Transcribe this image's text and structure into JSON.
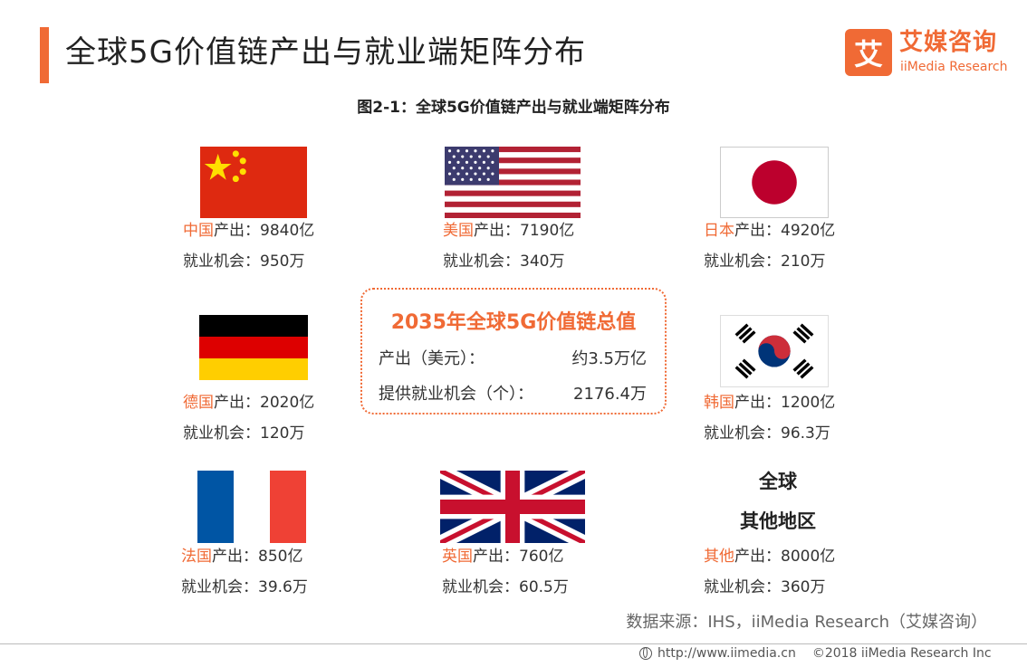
{
  "header": {
    "title": "全球5G价值链产出与就业端矩阵分布",
    "logo_icon": "艾",
    "logo_cn": "艾媒咨询",
    "logo_en": "iiMedia Research"
  },
  "chart_title": "图2-1：全球5G价值链产出与就业端矩阵分布",
  "countries": [
    {
      "name": "中国",
      "output_label": "产出：9840亿",
      "jobs_label": "就业机会：950万",
      "flag": "china-flag-icon"
    },
    {
      "name": "美国",
      "output_label": "产出：7190亿",
      "jobs_label": "就业机会：340万",
      "flag": "usa-flag-icon"
    },
    {
      "name": "日本",
      "output_label": "产出：4920亿",
      "jobs_label": "就业机会：210万",
      "flag": "japan-flag-icon"
    },
    {
      "name": "德国",
      "output_label": "产出：2020亿",
      "jobs_label": "就业机会：120万",
      "flag": "germany-flag-icon"
    },
    {
      "name": "韩国",
      "output_label": "产出：1200亿",
      "jobs_label": "就业机会：96.3万",
      "flag": "korea-flag-icon"
    },
    {
      "name": "法国",
      "output_label": "产出：850亿",
      "jobs_label": "就业机会：39.6万",
      "flag": "france-flag-icon"
    },
    {
      "name": "英国",
      "output_label": "产出：760亿",
      "jobs_label": "就业机会：60.5万",
      "flag": "uk-flag-icon"
    },
    {
      "name": "其他",
      "output_label": "产出：8000亿",
      "jobs_label": "就业机会：360万",
      "flag": ""
    }
  ],
  "global_region_label": [
    "全球",
    "其他地区"
  ],
  "summary": {
    "title": "2035年全球5G价值链总值",
    "output_label": "产出（美元）：",
    "output_value": "约3.5万亿",
    "jobs_label": "提供就业机会（个）：",
    "jobs_value": "2176.4万"
  },
  "source": "数据来源：IHS，iiMedia Research（艾媒咨询）",
  "footer": {
    "url": "http://www.iimedia.cn",
    "copyright": "©2018 iiMedia Research Inc"
  },
  "colors": {
    "accent": "#f06a35",
    "text": "#333333"
  }
}
